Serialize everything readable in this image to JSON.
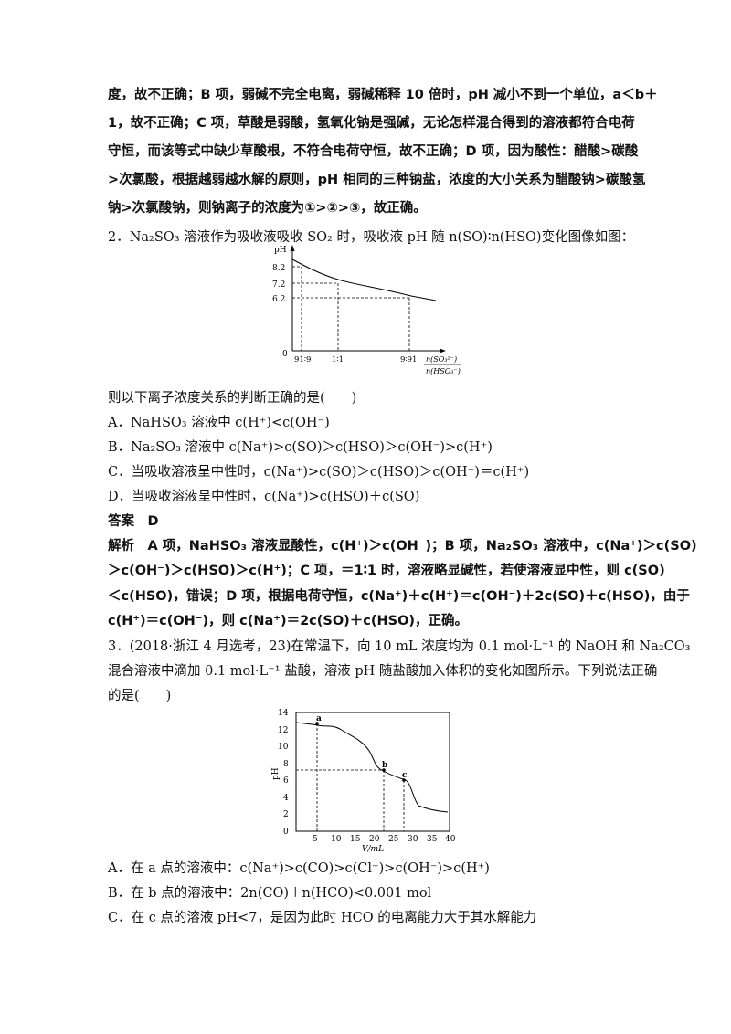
{
  "para1": {
    "l1": "度，故不正确；B 项，弱碱不完全电离，弱碱稀释 10 倍时，pH 减小不到一个单位，a＜b＋",
    "l2": "1，故不正确；C 项，草酸是弱酸，氢氧化钠是强碱，无论怎样混合得到的溶液都符合电荷",
    "l3": "守恒，而该等式中缺少草酸根，不符合电荷守恒，故不正确；D 项，因为酸性：醋酸>碳酸",
    "l4": ">次氯酸，根据越弱越水解的原则，pH 相同的三种钠盐，浓度的大小关系为醋酸钠>碳酸氢",
    "l5": "钠>次氯酸钠，则钠离子的浓度为①>②>③，故正确。"
  },
  "q2": {
    "stem": "2．Na₂SO₃ 溶液作为吸收液吸收 SO₂ 时，吸收液 pH 随 n(SO)∶n(HSO)变化图像如图：",
    "ask": "则以下离子浓度关系的判断正确的是(　　)",
    "optA": "A．NaHSO₃ 溶液中 c(H⁺)<c(OH⁻)",
    "optB": "B．Na₂SO₃ 溶液中 c(Na⁺)>c(SO)＞c(HSO)＞c(OH⁻)>c(H⁺)",
    "optC": "C．当吸收溶液呈中性时，c(Na⁺)>c(SO)＞c(HSO)＞c(OH⁻)＝c(H⁺)",
    "optD": "D．当吸收溶液呈中性时，c(Na⁺)>c(HSO)＋c(SO)",
    "answer": "答案　D",
    "exp1": "解析　A 项，NaHSO₃ 溶液显酸性，c(H⁺)＞c(OH⁻)；B 项，Na₂SO₃ 溶液中，c(Na⁺)＞c(SO)",
    "exp2": "＞c(OH⁻)＞c(HSO)＞c(H⁺)；C 项，＝1∶1 时，溶液略显碱性，若使溶液显中性，则 c(SO)",
    "exp3": "＜c(HSO)，错误；D 项，根据电荷守恒，c(Na⁺)＋c(H⁺)＝c(OH⁻)＋2c(SO)＋c(HSO)，由于",
    "exp4": "c(H⁺)＝c(OH⁻)，则 c(Na⁺)＝2c(SO)＋c(HSO)，正确。"
  },
  "chart1": {
    "ylabel": "pH",
    "yticks": [
      "8.2",
      "7.2",
      "6.2"
    ],
    "xticks": [
      "91∶9",
      "1∶1",
      "9∶91"
    ],
    "origin": "0",
    "xlabel_num": "n(SO₃²⁻)",
    "xlabel_den": "n(HSO₃⁻)"
  },
  "q3": {
    "l1": "3．(2018·浙江 4 月选考，23)在常温下，向 10 mL 浓度均为 0.1 mol·L⁻¹ 的 NaOH 和 Na₂CO₃",
    "l2": "混合溶液中滴加 0.1 mol·L⁻¹ 盐酸，溶液 pH 随盐酸加入体积的变化如图所示。下列说法正确",
    "l3": "的是(　　)",
    "optA": "A．在 a 点的溶液中：c(Na⁺)>c(CO)>c(Cl⁻)>c(OH⁻)>c(H⁺)",
    "optB": "B．在 b 点的溶液中：2n(CO)＋n(HCO)<0.001 mol",
    "optC": "C．在 c 点的溶液 pH<7，是因为此时 HCO 的电离能力大于其水解能力"
  },
  "chart2": {
    "ylabel": "pH",
    "xlabel": "V/mL",
    "yticks": [
      "14",
      "12",
      "10",
      "8",
      "6",
      "4",
      "2",
      "0"
    ],
    "xticks": [
      "5",
      "10",
      "15",
      "20",
      "25",
      "30",
      "35",
      "40"
    ],
    "points": [
      "a",
      "b",
      "c"
    ]
  }
}
